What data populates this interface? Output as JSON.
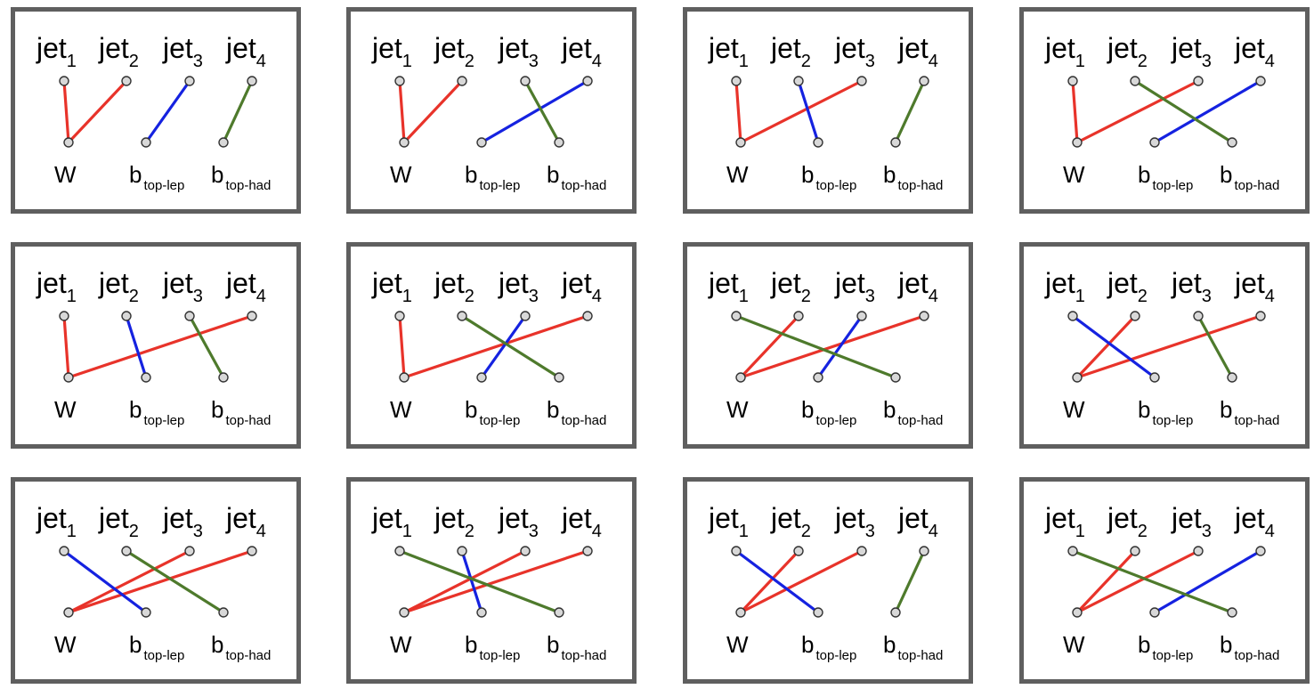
{
  "labels": {
    "jet_base": "jet",
    "jet_subs": [
      "1",
      "2",
      "3",
      "4"
    ],
    "targets": [
      {
        "base": "W",
        "sub": ""
      },
      {
        "base": "b",
        "sub": "top-lep"
      },
      {
        "base": "b",
        "sub": "top-had"
      }
    ]
  },
  "colors": {
    "W": "#e8332a",
    "b_top_lep": "#1522e0",
    "b_top_had": "#4e7a2c",
    "border": "#5f5f5f"
  },
  "assignments": [
    {
      "W": [
        1,
        2
      ],
      "b_top_lep": 3,
      "b_top_had": 4
    },
    {
      "W": [
        1,
        2
      ],
      "b_top_lep": 4,
      "b_top_had": 3
    },
    {
      "W": [
        1,
        3
      ],
      "b_top_lep": 2,
      "b_top_had": 4
    },
    {
      "W": [
        1,
        3
      ],
      "b_top_lep": 4,
      "b_top_had": 2
    },
    {
      "W": [
        1,
        4
      ],
      "b_top_lep": 2,
      "b_top_had": 3
    },
    {
      "W": [
        1,
        4
      ],
      "b_top_lep": 3,
      "b_top_had": 2
    },
    {
      "W": [
        2,
        4
      ],
      "b_top_lep": 3,
      "b_top_had": 1
    },
    {
      "W": [
        2,
        4
      ],
      "b_top_lep": 1,
      "b_top_had": 3
    },
    {
      "W": [
        3,
        4
      ],
      "b_top_lep": 1,
      "b_top_had": 2
    },
    {
      "W": [
        3,
        4
      ],
      "b_top_lep": 2,
      "b_top_had": 1
    },
    {
      "W": [
        2,
        3
      ],
      "b_top_lep": 1,
      "b_top_had": 4
    },
    {
      "W": [
        2,
        3
      ],
      "b_top_lep": 4,
      "b_top_had": 1
    }
  ]
}
